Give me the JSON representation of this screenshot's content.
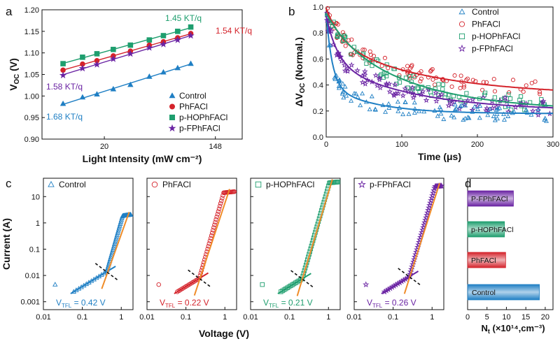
{
  "colors": {
    "control": "#1f7fc4",
    "phfacl": "#d4232b",
    "hop": "#1e9e6e",
    "fp": "#6a23a3",
    "orange": "#f08c28",
    "black": "#111111"
  },
  "chart_data": [
    {
      "panel": "a",
      "type": "scatter",
      "xlabel": "Light Intensity (mW cm⁻²)",
      "ylabel": "Vₒc (V)",
      "ylabel_main": "V",
      "ylabel_sub": "OC",
      "ylabel_unit": " (V)",
      "xscale": "log",
      "xlim": [
        6.5,
        240
      ],
      "ylim": [
        0.9,
        1.2
      ],
      "xticks": [
        {
          "v": 20,
          "label": "20"
        },
        {
          "v": 148,
          "label": "148"
        }
      ],
      "yticks": [
        0.9,
        0.95,
        1.0,
        1.05,
        1.1,
        1.15,
        1.2
      ],
      "ytick_labels": [
        "0.90",
        "0.95",
        "1.00",
        "1.05",
        "1.10",
        "1.15",
        "1.20"
      ],
      "legend": [
        "Control",
        "PhFACl",
        "p-HOPhFACl",
        "p-FPhFACl"
      ],
      "x": [
        9.5,
        13.5,
        17.5,
        23.5,
        32,
        45,
        58,
        75,
        95
      ],
      "series": [
        {
          "name": "Control",
          "key": "control",
          "marker": "triangle",
          "values": [
            0.982,
            0.997,
            1.004,
            1.016,
            1.026,
            1.045,
            1.055,
            1.065,
            1.075
          ],
          "slope_label": "1.68 KT/q"
        },
        {
          "name": "PhFACl",
          "key": "phfacl",
          "marker": "circle",
          "values": [
            1.06,
            1.074,
            1.082,
            1.093,
            1.104,
            1.118,
            1.126,
            1.135,
            1.145
          ],
          "slope_label": "1.54 KT/q"
        },
        {
          "name": "p-HOPhFACl",
          "key": "hop",
          "marker": "square",
          "values": [
            1.075,
            1.09,
            1.098,
            1.108,
            1.118,
            1.13,
            1.14,
            1.15,
            1.16
          ],
          "slope_label": "1.45 KT/q"
        },
        {
          "name": "p-FPhFACl",
          "key": "fp",
          "marker": "star",
          "values": [
            1.048,
            1.064,
            1.073,
            1.086,
            1.098,
            1.112,
            1.12,
            1.13,
            1.14
          ],
          "slope_label": "1.58 KT/q"
        }
      ]
    },
    {
      "panel": "b",
      "type": "scatter",
      "xlabel": "Time (μs)",
      "ylabel_main": "ΔV",
      "ylabel_sub": "OC",
      "ylabel_unit": " (Normal.)",
      "xlim": [
        0,
        300
      ],
      "ylim": [
        0,
        1.0
      ],
      "xticks": [
        0,
        100,
        200,
        300
      ],
      "yticks": [
        0.0,
        0.2,
        0.4,
        0.6,
        0.8,
        1.0
      ],
      "ytick_labels": [
        "0.0",
        "0.2",
        "0.4",
        "0.6",
        "0.8",
        "1.0"
      ],
      "legend": [
        "Control",
        "PhFACl",
        "p-HOPhFACl",
        "p-FPhFACl"
      ],
      "series": [
        {
          "name": "Control",
          "key": "control",
          "marker": "triangle-open",
          "fit": {
            "A1": 0.55,
            "t1": 8,
            "A2": 0.22,
            "t2": 60,
            "y0": 0.18
          }
        },
        {
          "name": "PhFACl",
          "key": "phfacl",
          "marker": "circle-open",
          "fit": {
            "A1": 0.25,
            "t1": 20,
            "A2": 0.42,
            "t2": 130,
            "y0": 0.32
          }
        },
        {
          "name": "p-HOPhFACl",
          "key": "hop",
          "marker": "square-open",
          "fit": {
            "A1": 0.15,
            "t1": 30,
            "A2": 0.6,
            "t2": 110,
            "y0": 0.2
          }
        },
        {
          "name": "p-FPhFACl",
          "key": "fp",
          "marker": "star-open",
          "fit": {
            "A1": 0.35,
            "t1": 15,
            "A2": 0.38,
            "t2": 110,
            "y0": 0.2
          }
        }
      ]
    },
    {
      "panel": "c",
      "type": "scatter",
      "xlabel": "Voltage (V)",
      "ylabel": "Current (A)",
      "xscale": "log",
      "yscale": "log",
      "xlim": [
        0.01,
        2
      ],
      "ylim": [
        0.0005,
        50
      ],
      "xticks": [
        {
          "v": 0.01,
          "label": "0.01"
        },
        {
          "v": 0.1,
          "label": "0.1"
        },
        {
          "v": 1,
          "label": "1"
        }
      ],
      "yticks": [
        {
          "v": 0.001,
          "label": "0.001"
        },
        {
          "v": 0.01,
          "label": "0.01"
        },
        {
          "v": 0.1,
          "label": "0.1"
        },
        {
          "v": 1,
          "label": "1"
        },
        {
          "v": 10,
          "label": "10"
        }
      ],
      "subplots": [
        {
          "name": "Control",
          "key": "control",
          "marker": "triangle-open",
          "vtfl_main": "V",
          "vtfl_sub": "TFL",
          "vtfl_value": " = 0.42 V",
          "vtfl": 0.42,
          "ohm_y": 0.003,
          "sclc_y": 2
        },
        {
          "name": "PhFACl",
          "key": "phfacl",
          "marker": "circle-open",
          "vtfl_main": "V",
          "vtfl_sub": "TFL",
          "vtfl_value": " = 0.22 V",
          "vtfl": 0.22,
          "ohm_y": 0.003,
          "sclc_y": 15
        },
        {
          "name": "p-HOPhFACl",
          "key": "hop",
          "marker": "square-open",
          "vtfl_main": "V",
          "vtfl_sub": "TFL",
          "vtfl_value": " = 0.21 V",
          "vtfl": 0.21,
          "ohm_y": 0.003,
          "sclc_y": 35
        },
        {
          "name": "p-FPhFACl",
          "key": "fp",
          "marker": "star-open",
          "vtfl_main": "V",
          "vtfl_sub": "TFL",
          "vtfl_value": " = 0.26 V",
          "vtfl": 0.26,
          "ohm_y": 0.003,
          "sclc_y": 25
        }
      ]
    },
    {
      "panel": "d",
      "type": "bar",
      "orientation": "horizontal",
      "xlabel_main": "N",
      "xlabel_sub": "t",
      "xlabel_unit": " (×10¹⁴,cm⁻³)",
      "xlim": [
        0,
        22
      ],
      "xticks": [
        0,
        5,
        10,
        15,
        20
      ],
      "categories": [
        "Control",
        "PhFACl",
        "p-HOPhFACl",
        "P-FPhFACl"
      ],
      "keys": [
        "control",
        "phfacl",
        "hop",
        "fp"
      ],
      "values": [
        18.5,
        9.8,
        9.5,
        11.8
      ]
    }
  ],
  "panel_letters": [
    "a",
    "b",
    "c",
    "d"
  ]
}
